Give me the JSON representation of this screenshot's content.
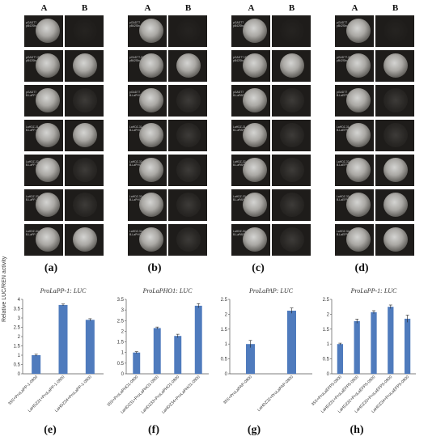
{
  "figure": {
    "col_headers": [
      "A",
      "B"
    ],
    "panels": [
      {
        "label": "(a)",
        "rows": [
          {
            "label": "pGADT7\npB42Sbu2",
            "a": "strong",
            "b": "none"
          },
          {
            "label": "pGADT7-53\npB42Sbu2",
            "a": "strong",
            "b": "strong"
          },
          {
            "label": "pGADT7\nB-LaPP-1-pHis2",
            "a": "strong",
            "b": "faint"
          },
          {
            "label": "LaHDZ-31-pGADT7\nB-LaPP-1-pHis2",
            "a": "strong",
            "b": "strong"
          },
          {
            "label": "LaHDZ-32-pGADT7\nB-LaPP-1-pHis2",
            "a": "strong",
            "b": "faint"
          },
          {
            "label": "LaHDZ-33-pGADT7\nB-LaPP-1-pHis2",
            "a": "strong",
            "b": "faint"
          },
          {
            "label": "LaHDZ-34-pGADT7\nB-LaPP-1-pHis2",
            "a": "strong",
            "b": "strong"
          }
        ]
      },
      {
        "label": "(b)",
        "rows": [
          {
            "label": "pGADT7\npB42Sbu2",
            "a": "strong",
            "b": "none"
          },
          {
            "label": "pGADT7-53\npB42Sbu2",
            "a": "strong",
            "b": "strong"
          },
          {
            "label": "pGADT7\nB-LaPHO1-pHis2",
            "a": "strong",
            "b": "faint"
          },
          {
            "label": "LaHDZ-31-pGADT7\nB-LaPHO1-pHis2",
            "a": "strong",
            "b": "faint"
          },
          {
            "label": "LaHDZ-32-pGADT7\nB-LaPHO1-pHis2",
            "a": "strong",
            "b": "faint"
          },
          {
            "label": "LaHDZ-33-pGADT7\nB-LaPHO1-pHis2",
            "a": "strong",
            "b": "faint"
          },
          {
            "label": "LaHDZ-34-pGADT7\nB-LaPHO1-pHis2",
            "a": "strong",
            "b": "faint"
          }
        ]
      },
      {
        "label": "(c)",
        "rows": [
          {
            "label": "pGADT7\npB42Sbu2",
            "a": "strong",
            "b": "none"
          },
          {
            "label": "pGADT7-53\npB42Sbu2",
            "a": "strong",
            "b": "strong"
          },
          {
            "label": "pGADT7\nB-LaPAP-pHis2",
            "a": "strong",
            "b": "faint"
          },
          {
            "label": "LaHDZ-31-pGADT7\nB-LaPAP-pHis2",
            "a": "strong",
            "b": "faint"
          },
          {
            "label": "LaHDZ-32-pGADT7\nB-LaPAP-pHis2",
            "a": "strong",
            "b": "faint"
          },
          {
            "label": "LaHDZ-33-pGADT7\nB-LaPAP-pHis2",
            "a": "strong",
            "b": "faint"
          },
          {
            "label": "LaHDZ-34-pGADT7\nB-LaPAP-pHis2",
            "a": "strong",
            "b": "faint"
          }
        ]
      },
      {
        "label": "(d)",
        "rows": [
          {
            "label": "pGADT7\npB42Sbu2",
            "a": "strong",
            "b": "none"
          },
          {
            "label": "pGADT7-53\npB42Sbu2",
            "a": "strong",
            "b": "strong"
          },
          {
            "label": "pGADT7\nB-LaEFP-pHis2",
            "a": "strong",
            "b": "faint"
          },
          {
            "label": "LaHDZ-31-pGADT7\nB-LaEFP-pHis2",
            "a": "strong",
            "b": "faint"
          },
          {
            "label": "LaHDZ-32-pGADT7\nB-LaEFP-pHis2",
            "a": "strong",
            "b": "strong"
          },
          {
            "label": "LaHDZ-33-pGADT7\nB-LaEFP-pHis2",
            "a": "strong",
            "b": "strong"
          },
          {
            "label": "LaHDZ-34-pGADT7\nB-LaEFP-pHis2",
            "a": "strong",
            "b": "strong"
          }
        ]
      }
    ]
  },
  "chart_data": [
    {
      "type": "bar",
      "label": "(e)",
      "title": "ProLaPP-1: LUC",
      "ylabel": "Relative LUC/REN activity",
      "categories": [
        "35S+ProLaPP-1-0800",
        "LaHDZ31+ProLaPP-1-0800",
        "LaHDZ34+ProLaPP-1-0800"
      ],
      "values": [
        1.0,
        3.7,
        2.9
      ],
      "errors": [
        0.05,
        0.05,
        0.06
      ],
      "ylim": [
        0,
        4
      ],
      "yticks": [
        "0",
        "0.5",
        "1",
        "1.5",
        "2",
        "2.5",
        "3",
        "3.5",
        "4"
      ],
      "color": "#4f7bbd"
    },
    {
      "type": "bar",
      "label": "(f)",
      "title": "ProLaPHO1: LUC",
      "categories": [
        "35S+ProLaPHO1-0800",
        "LaHDZ31+ProLaPHO1-0800",
        "LaHDZ33+ProLaPHO1-0800",
        "LaHDZ34+ProLaPHO1-0800"
      ],
      "values": [
        1.0,
        2.15,
        1.78,
        3.2
      ],
      "errors": [
        0.04,
        0.05,
        0.08,
        0.1
      ],
      "ylim": [
        0,
        3.5
      ],
      "yticks": [
        "0",
        "0.5",
        "1",
        "1.5",
        "2",
        "2.5",
        "3",
        "3.5"
      ],
      "color": "#4f7bbd"
    },
    {
      "type": "bar",
      "label": "(g)",
      "title": "ProLaPAP: LUC",
      "categories": [
        "35S+ProLaPAP-0800",
        "LaHDZ32+ProLaPAP-0800"
      ],
      "values": [
        1.0,
        2.12
      ],
      "errors": [
        0.12,
        0.09
      ],
      "ylim": [
        0,
        2.5
      ],
      "yticks": [
        "0",
        "0.5",
        "1",
        "1.5",
        "2",
        "2.5"
      ],
      "color": "#4f7bbd"
    },
    {
      "type": "bar",
      "label": "(h)",
      "title": "ProLaPP-1: LUC",
      "categories": [
        "35S+ProLaEFP5-0800",
        "LaHDZ31+ProLaEFP5-0800",
        "LaHDZ32+ProLaEFP5-0800",
        "LaHDZ33+ProLaEFP5-0800",
        "LaHDZ34+ProLaEFP5-0800"
      ],
      "values": [
        1.0,
        1.77,
        2.07,
        2.25,
        1.85
      ],
      "errors": [
        0.03,
        0.07,
        0.05,
        0.06,
        0.12
      ],
      "ylim": [
        0,
        2.5
      ],
      "yticks": [
        "0",
        "0.5",
        "1",
        "1.5",
        "2",
        "2.5"
      ],
      "color": "#4f7bbd"
    }
  ]
}
